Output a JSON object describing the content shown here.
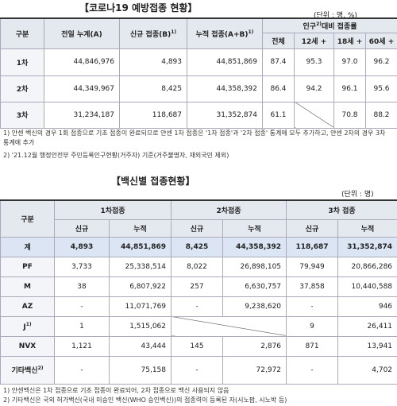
{
  "table1": {
    "title": "【코로나19 예방접종 현황】",
    "unit": "(단위 : 명, %)",
    "headers": {
      "category": "구분",
      "prev": "전일 누계(A)",
      "new": {
        "text": "신규 접종(B)",
        "note": "1)"
      },
      "cum": {
        "text": "누적 접종(A+B)",
        "note": "1)"
      },
      "rate": {
        "text": "인구",
        "note": "2)",
        "rest": "대비 접종률"
      },
      "rate_cols": [
        "전체",
        "12세 +",
        "18세 +",
        "60세 +"
      ]
    },
    "rows": [
      [
        "1차",
        "44,846,976",
        "4,893",
        "44,851,869",
        "87.4",
        "95.3",
        "97.0",
        "96.2"
      ],
      [
        "2차",
        "44,349,967",
        "8,425",
        "44,358,392",
        "86.4",
        "94.2",
        "96.1",
        "95.6"
      ],
      [
        "3차",
        "31,234,187",
        "118,687",
        "31,352,874",
        "61.1",
        null,
        "70.8",
        "88.2"
      ]
    ],
    "notes": [
      "1) 얀센 백신의 경우 1회 접종으로 기초 접종이 완료되므로 얀센 1차 접종은 '1차 접종'과 '2차 접종' 통계에 모두 추가하고, 얀센 2차의 경우 3차 통계에 추가",
      "2) '21.12월 행정안전부 주민등록인구현황(거주자) 기준(거주불명자, 재외국민 제외)"
    ]
  },
  "table2": {
    "title": "【백신별 접종현황】",
    "unit": "(단위 : 명)",
    "headers": {
      "category": "구분",
      "groups": [
        "1차접종",
        "2차접종",
        "3차 접종"
      ],
      "sub": [
        "신규",
        "누적",
        "신규",
        "누적",
        "신규",
        "누적"
      ]
    },
    "rows": [
      {
        "label": "계",
        "cells": [
          "4,893",
          "44,851,869",
          "8,425",
          "44,358,392",
          "118,687",
          "31,352,874"
        ]
      },
      {
        "label": "PF",
        "cells": [
          "3,733",
          "25,338,514",
          "8,022",
          "26,898,105",
          "79,949",
          "20,866,286"
        ]
      },
      {
        "label": "M",
        "cells": [
          "38",
          "6,807,922",
          "257",
          "6,630,757",
          "37,858",
          "10,440,588"
        ]
      },
      {
        "label": "AZ",
        "cells": [
          "-",
          "11,071,769",
          "-",
          "9,238,620",
          "-",
          "946"
        ]
      },
      {
        "label": "J",
        "note": "1)",
        "cells": [
          "1",
          "1,515,062",
          null,
          null,
          "9",
          "26,411"
        ]
      },
      {
        "label": "NVX",
        "cells": [
          "1,121",
          "43,444",
          "145",
          "2,876",
          "871",
          "13,941"
        ]
      },
      {
        "label": "기타백신",
        "note": "2)",
        "cells": [
          "-",
          "75,158",
          "-",
          "72,972",
          "-",
          "4,702"
        ]
      }
    ],
    "notes": [
      "1) 얀센백신은 1차 접종으로 기초 접종이 완료되어, 2차 접종으로 백신 사용되지 않음",
      "2) 기타백신은 국외 허가백신(국내 미승인 백신(WHO 승인백신))의 접종력이 등록된 자(시노팜, 시노박 등)"
    ]
  }
}
